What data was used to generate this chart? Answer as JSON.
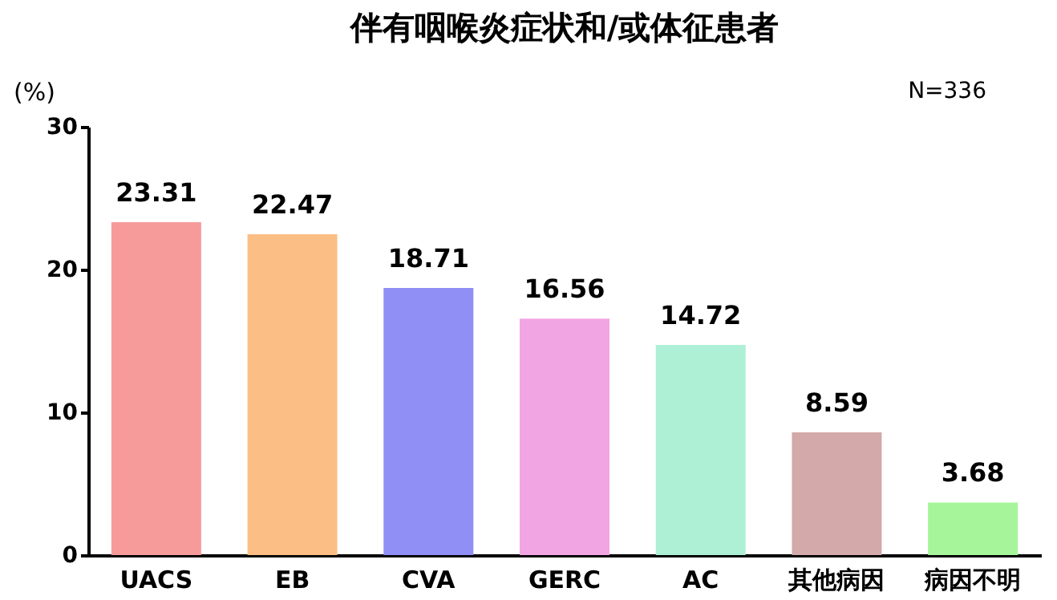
{
  "chart_data": {
    "type": "bar",
    "title": "伴有咽喉炎症状和/或体征患者",
    "ylabel": "(%)",
    "categories": [
      "UACS",
      "EB",
      "CVA",
      "GERC",
      "AC",
      "其他病因",
      "病因不明"
    ],
    "values": [
      23.31,
      22.47,
      18.71,
      16.56,
      14.72,
      8.59,
      3.68
    ],
    "colors": [
      "#f79a9a",
      "#fbbf85",
      "#8f8ff5",
      "#f2a5e3",
      "#aef0d5",
      "#d4a9a9",
      "#a6f59a"
    ],
    "ylim": [
      0,
      30
    ],
    "yticks": [
      0,
      10,
      20,
      30
    ],
    "grid": false,
    "data_labels": true,
    "annotations": [
      "N=336"
    ]
  }
}
